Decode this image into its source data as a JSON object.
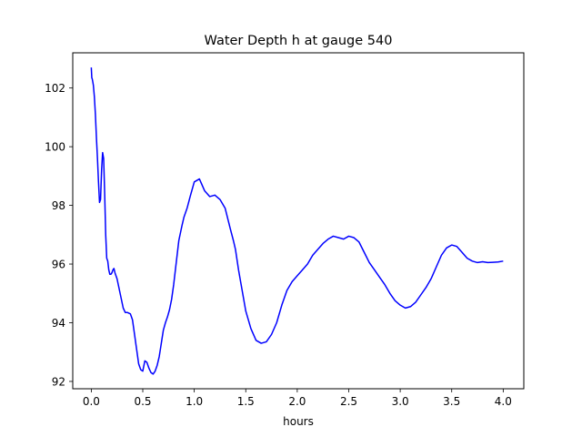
{
  "chart_data": {
    "type": "line",
    "title": "Water Depth h at gauge 540",
    "xlabel": "hours",
    "ylabel": "",
    "xlim": [
      -0.18,
      4.2
    ],
    "ylim": [
      91.75,
      103.2
    ],
    "xticks": [
      0.0,
      0.5,
      1.0,
      1.5,
      2.0,
      2.5,
      3.0,
      3.5,
      4.0
    ],
    "xtick_labels": [
      "0.0",
      "0.5",
      "1.0",
      "1.5",
      "2.0",
      "2.5",
      "3.0",
      "3.5",
      "4.0"
    ],
    "yticks": [
      92,
      94,
      96,
      98,
      100,
      102
    ],
    "ytick_labels": [
      "92",
      "94",
      "96",
      "98",
      "100",
      "102"
    ],
    "grid": false,
    "legend": "none",
    "series": [
      {
        "color": "#0000ff",
        "x": [
          0.0,
          0.005,
          0.01,
          0.02,
          0.03,
          0.04,
          0.05,
          0.06,
          0.07,
          0.08,
          0.09,
          0.1,
          0.11,
          0.12,
          0.13,
          0.14,
          0.15,
          0.16,
          0.17,
          0.18,
          0.19,
          0.2,
          0.21,
          0.22,
          0.23,
          0.25,
          0.28,
          0.31,
          0.33,
          0.35,
          0.38,
          0.4,
          0.42,
          0.44,
          0.46,
          0.48,
          0.5,
          0.52,
          0.54,
          0.56,
          0.58,
          0.6,
          0.62,
          0.64,
          0.66,
          0.68,
          0.7,
          0.72,
          0.74,
          0.76,
          0.78,
          0.8,
          0.82,
          0.85,
          0.88,
          0.9,
          0.93,
          0.96,
          1.0,
          1.05,
          1.1,
          1.15,
          1.2,
          1.25,
          1.3,
          1.35,
          1.38,
          1.4,
          1.43,
          1.47,
          1.5,
          1.55,
          1.6,
          1.65,
          1.7,
          1.75,
          1.8,
          1.85,
          1.9,
          1.95,
          2.0,
          2.05,
          2.1,
          2.15,
          2.2,
          2.25,
          2.3,
          2.35,
          2.4,
          2.45,
          2.5,
          2.55,
          2.6,
          2.65,
          2.7,
          2.75,
          2.8,
          2.85,
          2.9,
          2.95,
          3.0,
          3.05,
          3.1,
          3.15,
          3.2,
          3.25,
          3.3,
          3.35,
          3.4,
          3.45,
          3.5,
          3.55,
          3.6,
          3.65,
          3.7,
          3.75,
          3.8,
          3.85,
          3.9,
          3.95,
          4.0
        ],
        "y": [
          102.7,
          102.35,
          102.3,
          102.1,
          101.7,
          101.1,
          100.3,
          99.6,
          98.8,
          98.1,
          98.2,
          99.2,
          99.8,
          99.6,
          98.4,
          97.0,
          96.2,
          96.1,
          95.8,
          95.65,
          95.65,
          95.7,
          95.8,
          95.85,
          95.7,
          95.5,
          95.0,
          94.5,
          94.35,
          94.35,
          94.3,
          94.1,
          93.6,
          93.1,
          92.6,
          92.4,
          92.35,
          92.7,
          92.65,
          92.45,
          92.3,
          92.25,
          92.35,
          92.55,
          92.85,
          93.3,
          93.75,
          94.0,
          94.2,
          94.45,
          94.8,
          95.3,
          95.9,
          96.8,
          97.3,
          97.6,
          97.9,
          98.3,
          98.8,
          98.9,
          98.5,
          98.3,
          98.35,
          98.2,
          97.9,
          97.2,
          96.8,
          96.5,
          95.8,
          95.0,
          94.4,
          93.8,
          93.4,
          93.3,
          93.35,
          93.6,
          94.0,
          94.6,
          95.1,
          95.4,
          95.6,
          95.8,
          96.0,
          96.3,
          96.5,
          96.7,
          96.85,
          96.95,
          96.9,
          96.85,
          96.95,
          96.9,
          96.75,
          96.4,
          96.05,
          95.8,
          95.55,
          95.3,
          95.0,
          94.75,
          94.6,
          94.5,
          94.55,
          94.7,
          94.95,
          95.2,
          95.5,
          95.9,
          96.3,
          96.55,
          96.65,
          96.6,
          96.4,
          96.2,
          96.1,
          96.05,
          96.08,
          96.05,
          96.06,
          96.07,
          96.1
        ]
      }
    ]
  }
}
